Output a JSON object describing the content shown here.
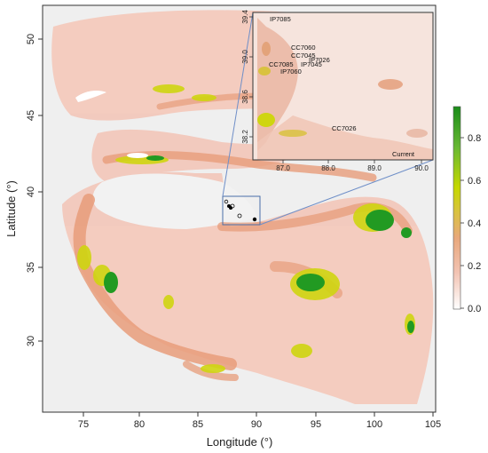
{
  "map": {
    "xlabel": "Longitude (°)",
    "ylabel": "Latitude (°)",
    "x_ticks": [
      "75",
      "80",
      "85",
      "90",
      "95",
      "100",
      "105"
    ],
    "y_ticks": [
      "30",
      "35",
      "40",
      "45",
      "50"
    ],
    "xlim": [
      71.8,
      105.3
    ],
    "ylim": [
      26.2,
      52.7
    ]
  },
  "colorbar": {
    "ticks": [
      "0.0",
      "0.2",
      "0.4",
      "0.6",
      "0.8"
    ],
    "range": [
      0,
      0.95
    ],
    "colors": [
      "#ffffff",
      "#f2c3b3",
      "#e8a87c",
      "#d9c240",
      "#c5d800",
      "#68b833",
      "#1a8c1a"
    ]
  },
  "inset": {
    "label": "Current",
    "x_ticks": [
      "87.0",
      "88.0",
      "89.0",
      "90.0"
    ],
    "y_ticks": [
      "38.2",
      "38.6",
      "39.0",
      "39.4"
    ],
    "sites": [
      "IP7085",
      "CC7060",
      "CC7045",
      "IP7026",
      "CC7085",
      "IP7045",
      "IP7060",
      "CC7026"
    ]
  },
  "colors": {
    "background": "#eeeeee",
    "low": "#f3c6b8",
    "mid": "#e39a76",
    "high": "#cfd800",
    "max": "#1f8f1f"
  }
}
